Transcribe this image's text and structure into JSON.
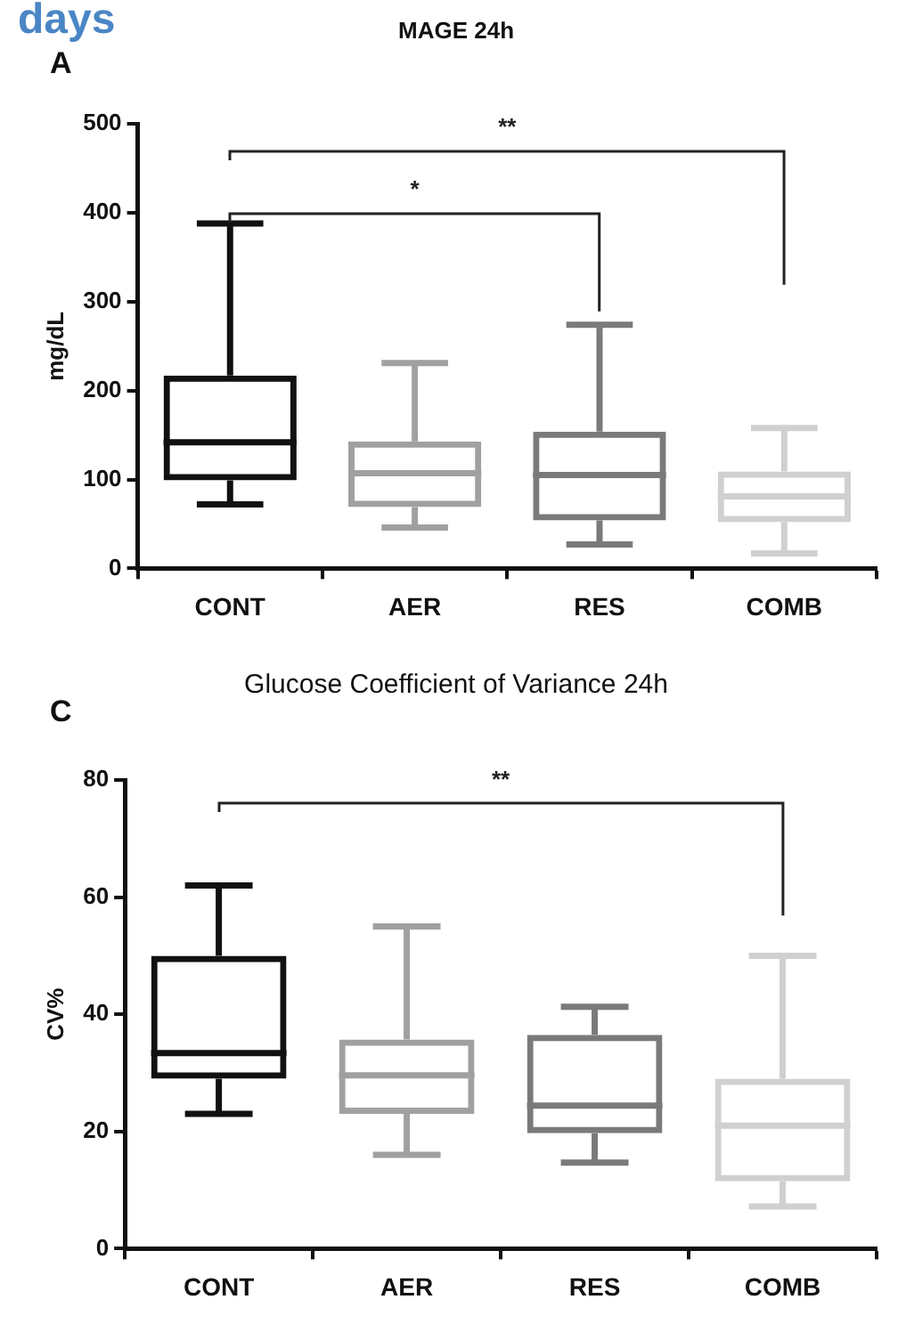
{
  "chart_data": [
    {
      "type": "box",
      "title": "MAGE 24h",
      "ylabel": "mg/dL",
      "categories": [
        "CONT",
        "AER",
        "RES",
        "COMB"
      ],
      "colors": [
        "#111111",
        "#a0a0a0",
        "#7a7a7a",
        "#d0d0d0"
      ],
      "boxes": [
        {
          "low": 72,
          "q1": 99,
          "median": 142,
          "q3": 217,
          "high": 388
        },
        {
          "low": 46,
          "q1": 69,
          "median": 107,
          "q3": 143,
          "high": 231
        },
        {
          "low": 27,
          "q1": 54,
          "median": 105,
          "q3": 154,
          "high": 274
        },
        {
          "low": 17,
          "q1": 52,
          "median": 81,
          "q3": 109,
          "high": 158
        }
      ],
      "ylim": [
        0,
        500
      ],
      "yticks": [
        0,
        100,
        200,
        300,
        400,
        500
      ],
      "grid": false,
      "legend": false,
      "annotations": [
        "days",
        "A",
        "*",
        "**"
      ]
    },
    {
      "type": "box",
      "title": "Glucose Coefficient of Variance 24h",
      "ylabel": "CV%",
      "categories": [
        "CONT",
        "AER",
        "RES",
        "COMB"
      ],
      "colors": [
        "#111111",
        "#a0a0a0",
        "#7a7a7a",
        "#d0d0d0"
      ],
      "boxes": [
        {
          "low": 23,
          "q1": 29,
          "median": 33.4,
          "q3": 50,
          "high": 62
        },
        {
          "low": 16,
          "q1": 23,
          "median": 29.6,
          "q3": 35.7,
          "high": 55
        },
        {
          "low": 14.7,
          "q1": 19.7,
          "median": 24.4,
          "q3": 36.5,
          "high": 41.3
        },
        {
          "low": 7.2,
          "q1": 11.5,
          "median": 21,
          "q3": 29,
          "high": 50
        }
      ],
      "ylim": [
        0,
        80
      ],
      "yticks": [
        0,
        20,
        40,
        60,
        80
      ],
      "grid": false,
      "legend": false,
      "annotations": [
        "C",
        "**"
      ]
    }
  ]
}
